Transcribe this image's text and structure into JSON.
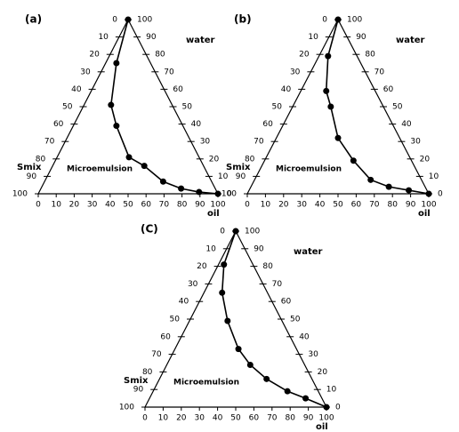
{
  "chart_data": [
    {
      "type": "ternary",
      "panel_label": "(a)",
      "water_label": "water",
      "oil_label": "oil",
      "smix_label": "Smix",
      "annotation": "Microemulsion",
      "color": "#000000",
      "ticks": [
        0,
        10,
        20,
        30,
        40,
        50,
        60,
        70,
        80,
        90,
        100
      ],
      "oil": [
        0,
        6,
        15,
        24,
        40,
        51,
        66,
        78,
        89,
        100
      ],
      "water": [
        100,
        75,
        51,
        39,
        21,
        16,
        7,
        3,
        1,
        0
      ]
    },
    {
      "type": "ternary",
      "panel_label": "(b)",
      "water_label": "water",
      "oil_label": "oil",
      "smix_label": "Smix",
      "annotation": "Microemulsion",
      "color": "#000000",
      "ticks": [
        0,
        10,
        20,
        30,
        40,
        50,
        60,
        70,
        80,
        90,
        100
      ],
      "oil": [
        0,
        5,
        14,
        21,
        34,
        49,
        64,
        76,
        88,
        100
      ],
      "water": [
        100,
        79,
        59,
        50,
        32,
        19,
        8,
        4,
        2,
        0
      ]
    },
    {
      "type": "ternary",
      "panel_label": "(C)",
      "water_label": "water",
      "oil_label": "oil",
      "smix_label": "Smix",
      "annotation": "Microemulsion",
      "color": "#000000",
      "ticks": [
        0,
        10,
        20,
        30,
        40,
        50,
        60,
        70,
        80,
        90,
        100
      ],
      "oil": [
        0,
        3,
        10,
        21,
        35,
        46,
        59,
        74,
        86,
        100
      ],
      "water": [
        100,
        81,
        65,
        49,
        33,
        24,
        16,
        9,
        5,
        0
      ]
    }
  ]
}
